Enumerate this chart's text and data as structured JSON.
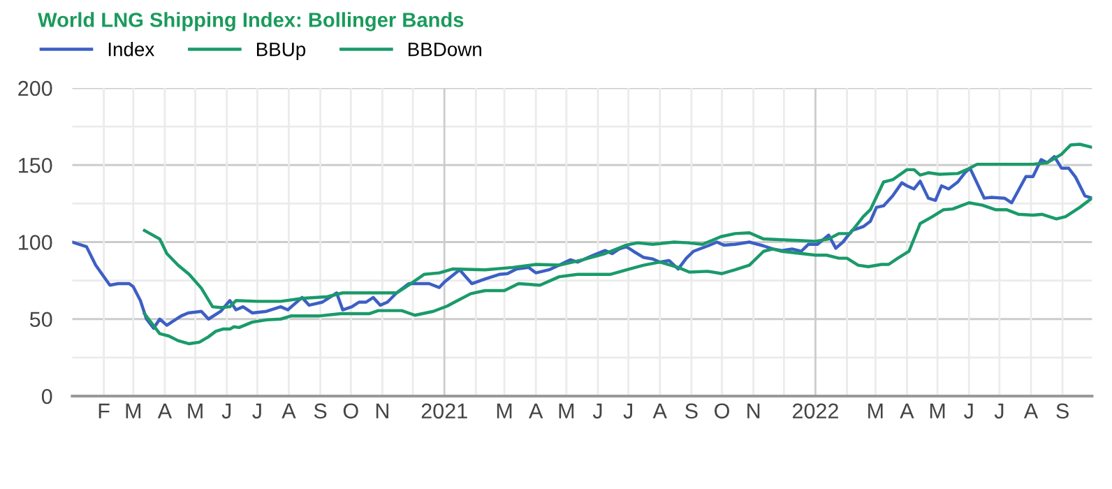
{
  "chart_data": {
    "type": "line",
    "title": "World LNG Shipping Index: Bollinger Bands",
    "legend": "top left",
    "grid": true,
    "line_style": "solid",
    "marker": "none",
    "xlim": [
      "2020-01-01",
      "2022-09-30"
    ],
    "ylim": [
      0,
      200
    ],
    "yticks": [
      0,
      {
        "value": 25,
        "label": null
      },
      50,
      {
        "value": 75,
        "label": null
      },
      100,
      {
        "value": 125,
        "label": null
      },
      150,
      {
        "value": 175,
        "label": null
      },
      200
    ],
    "xticks": [
      {
        "value": "2020-02-01",
        "label": "F"
      },
      {
        "value": "2020-03-01",
        "label": "M"
      },
      {
        "value": "2020-04-01",
        "label": "A"
      },
      {
        "value": "2020-05-01",
        "label": "M"
      },
      {
        "value": "2020-06-01",
        "label": "J"
      },
      {
        "value": "2020-07-01",
        "label": "J"
      },
      {
        "value": "2020-08-01",
        "label": "A"
      },
      {
        "value": "2020-09-01",
        "label": "S"
      },
      {
        "value": "2020-10-01",
        "label": "O"
      },
      {
        "value": "2020-11-01",
        "label": "N"
      },
      {
        "value": "2020-12-01",
        "label": null
      },
      {
        "value": "2021-01-01",
        "label": "2021"
      },
      {
        "value": "2021-02-01",
        "label": null
      },
      {
        "value": "2021-03-01",
        "label": "M"
      },
      {
        "value": "2021-04-01",
        "label": "A"
      },
      {
        "value": "2021-05-01",
        "label": "M"
      },
      {
        "value": "2021-06-01",
        "label": "J"
      },
      {
        "value": "2021-07-01",
        "label": "J"
      },
      {
        "value": "2021-08-01",
        "label": "A"
      },
      {
        "value": "2021-09-01",
        "label": "S"
      },
      {
        "value": "2021-10-01",
        "label": "O"
      },
      {
        "value": "2021-11-01",
        "label": "N"
      },
      {
        "value": "2021-12-01",
        "label": null
      },
      {
        "value": "2022-01-01",
        "label": "2022"
      },
      {
        "value": "2022-02-01",
        "label": null
      },
      {
        "value": "2022-03-01",
        "label": "M"
      },
      {
        "value": "2022-04-01",
        "label": "A"
      },
      {
        "value": "2022-05-01",
        "label": "M"
      },
      {
        "value": "2022-06-01",
        "label": "J"
      },
      {
        "value": "2022-07-01",
        "label": "J"
      },
      {
        "value": "2022-08-01",
        "label": "A"
      },
      {
        "value": "2022-09-01",
        "label": "S"
      }
    ],
    "series": [
      {
        "name": "Index",
        "color": "#3d5fc4",
        "x": [
          "2020-01-01",
          "2020-01-15",
          "2020-01-24",
          "2020-02-07",
          "2020-02-15",
          "2020-02-26",
          "2020-03-01",
          "2020-03-08",
          "2020-03-14",
          "2020-03-21",
          "2020-03-27",
          "2020-04-03",
          "2020-04-17",
          "2020-04-24",
          "2020-05-07",
          "2020-05-14",
          "2020-05-26",
          "2020-06-04",
          "2020-06-10",
          "2020-06-17",
          "2020-06-26",
          "2020-07-10",
          "2020-07-24",
          "2020-07-31",
          "2020-08-14",
          "2020-08-21",
          "2020-09-03",
          "2020-09-17",
          "2020-09-23",
          "2020-10-02",
          "2020-10-09",
          "2020-10-16",
          "2020-10-23",
          "2020-10-30",
          "2020-11-06",
          "2020-11-15",
          "2020-11-27",
          "2020-12-08",
          "2020-12-17",
          "2020-12-27",
          "2021-01-01",
          "2021-01-16",
          "2021-01-28",
          "2021-02-10",
          "2021-02-24",
          "2021-03-04",
          "2021-03-13",
          "2021-03-25",
          "2021-04-01",
          "2021-04-14",
          "2021-04-24",
          "2021-05-05",
          "2021-05-12",
          "2021-05-26",
          "2021-06-08",
          "2021-06-15",
          "2021-06-22",
          "2021-06-29",
          "2021-07-06",
          "2021-07-16",
          "2021-07-25",
          "2021-08-01",
          "2021-08-10",
          "2021-08-19",
          "2021-08-27",
          "2021-09-03",
          "2021-09-17",
          "2021-09-26",
          "2021-10-03",
          "2021-10-14",
          "2021-10-28",
          "2021-11-11",
          "2021-11-20",
          "2021-11-29",
          "2021-12-09",
          "2021-12-18",
          "2021-12-25",
          "2022-01-03",
          "2022-01-14",
          "2022-01-21",
          "2022-01-28",
          "2022-02-06",
          "2022-02-17",
          "2022-02-24",
          "2022-03-02",
          "2022-03-09",
          "2022-03-18",
          "2022-03-27",
          "2022-04-01",
          "2022-04-08",
          "2022-04-14",
          "2022-04-22",
          "2022-04-29",
          "2022-05-05",
          "2022-05-12",
          "2022-05-21",
          "2022-05-28",
          "2022-06-02",
          "2022-06-16",
          "2022-06-23",
          "2022-07-06",
          "2022-07-13",
          "2022-07-27",
          "2022-08-03",
          "2022-08-11",
          "2022-08-17",
          "2022-08-24",
          "2022-08-31",
          "2022-09-07",
          "2022-09-14",
          "2022-09-23",
          "2022-09-30"
        ],
        "values": [
          100,
          97,
          85,
          72,
          73,
          73,
          71,
          62,
          50,
          44,
          50,
          46,
          52,
          54,
          55,
          50,
          55,
          62,
          56,
          58,
          54,
          55,
          58,
          56,
          64,
          59,
          61,
          67,
          56,
          58,
          61,
          61,
          64,
          59,
          61,
          67,
          73,
          73,
          73,
          70.5,
          74,
          82,
          73,
          76,
          79,
          79.5,
          82.5,
          83.5,
          80,
          82,
          85,
          88.5,
          87,
          91,
          94.5,
          92.5,
          95.5,
          97,
          94,
          90,
          89,
          87,
          88,
          82.5,
          89.5,
          94,
          97.5,
          100,
          98,
          98.5,
          100,
          97.5,
          95.5,
          94.5,
          95.5,
          94,
          98.5,
          98.5,
          104.5,
          96,
          100,
          107.5,
          110,
          113.5,
          122.5,
          123.5,
          130,
          138.5,
          136.5,
          134.5,
          139.5,
          128.5,
          127,
          136.5,
          134.5,
          139,
          145,
          148,
          128.5,
          129,
          128.5,
          125.5,
          142.5,
          142.5,
          153.5,
          151.5,
          155.5,
          148,
          148,
          142,
          130,
          128.5
        ]
      },
      {
        "name": "BBUp",
        "color": "#1a9a6a",
        "x": [
          "2020-03-12",
          "2020-03-27",
          "2020-04-03",
          "2020-04-14",
          "2020-04-25",
          "2020-05-07",
          "2020-05-18",
          "2020-05-26",
          "2020-06-04",
          "2020-06-10",
          "2020-07-01",
          "2020-07-24",
          "2020-08-15",
          "2020-09-08",
          "2020-09-23",
          "2020-10-23",
          "2020-11-15",
          "2020-11-29",
          "2020-12-12",
          "2020-12-27",
          "2021-01-09",
          "2021-02-10",
          "2021-03-09",
          "2021-04-01",
          "2021-04-24",
          "2021-05-17",
          "2021-06-08",
          "2021-06-29",
          "2021-07-10",
          "2021-07-25",
          "2021-08-15",
          "2021-08-29",
          "2021-09-12",
          "2021-09-30",
          "2021-10-14",
          "2021-10-28",
          "2021-11-11",
          "2021-11-29",
          "2021-12-15",
          "2022-01-01",
          "2022-01-14",
          "2022-01-24",
          "2022-02-04",
          "2022-02-17",
          "2022-02-24",
          "2022-03-09",
          "2022-03-18",
          "2022-04-01",
          "2022-04-08",
          "2022-04-14",
          "2022-04-22",
          "2022-05-03",
          "2022-05-21",
          "2022-06-02",
          "2022-06-09",
          "2022-07-02",
          "2022-08-03",
          "2022-08-17",
          "2022-08-31",
          "2022-09-09",
          "2022-09-18",
          "2022-09-30"
        ],
        "values": [
          107.5,
          102,
          92.5,
          85,
          79,
          70,
          58,
          57.5,
          58,
          62,
          61.5,
          61.5,
          63.5,
          64.5,
          67,
          67,
          67,
          73,
          79,
          80,
          82.5,
          82,
          83.5,
          85.5,
          85,
          88.5,
          92.5,
          98,
          99.5,
          98.5,
          100,
          99.5,
          98.5,
          103.5,
          105.5,
          106,
          102,
          101.5,
          101,
          100.5,
          102,
          105.5,
          105.5,
          116.5,
          121,
          139,
          140.5,
          147,
          147,
          143.5,
          145,
          144,
          144.5,
          148,
          150.5,
          150.5,
          150.5,
          151.5,
          157,
          163,
          163.5,
          161.5
        ]
      },
      {
        "name": "BBDown",
        "color": "#1a9a6a",
        "x": [
          "2020-03-12",
          "2020-03-27",
          "2020-04-05",
          "2020-04-14",
          "2020-04-25",
          "2020-05-05",
          "2020-05-14",
          "2020-05-21",
          "2020-05-28",
          "2020-06-04",
          "2020-06-08",
          "2020-06-13",
          "2020-06-26",
          "2020-07-10",
          "2020-07-24",
          "2020-08-03",
          "2020-08-30",
          "2020-09-21",
          "2020-10-19",
          "2020-10-28",
          "2020-11-20",
          "2020-12-03",
          "2020-12-21",
          "2021-01-04",
          "2021-01-11",
          "2021-01-27",
          "2021-02-10",
          "2021-03-01",
          "2021-03-15",
          "2021-04-05",
          "2021-04-24",
          "2021-05-12",
          "2021-05-31",
          "2021-06-13",
          "2021-07-02",
          "2021-07-16",
          "2021-08-01",
          "2021-08-19",
          "2021-08-30",
          "2021-09-17",
          "2021-10-01",
          "2021-10-14",
          "2021-10-28",
          "2021-11-11",
          "2021-11-20",
          "2021-11-29",
          "2022-01-01",
          "2022-01-12",
          "2022-01-24",
          "2022-02-01",
          "2022-02-12",
          "2022-02-22",
          "2022-03-07",
          "2022-03-14",
          "2022-03-23",
          "2022-04-03",
          "2022-04-14",
          "2022-04-26",
          "2022-05-07",
          "2022-05-16",
          "2022-06-01",
          "2022-06-14",
          "2022-06-27",
          "2022-07-08",
          "2022-07-20",
          "2022-08-03",
          "2022-08-12",
          "2022-08-26",
          "2022-09-04",
          "2022-09-18",
          "2022-09-30"
        ],
        "values": [
          53.5,
          40.5,
          39,
          36,
          34,
          35,
          38.5,
          42,
          43.5,
          43.5,
          45,
          44.5,
          48,
          49.5,
          50,
          52,
          52,
          53.5,
          53.5,
          55.5,
          55.5,
          52.5,
          55,
          58.5,
          61,
          66.5,
          68.5,
          68.5,
          73,
          72,
          77.5,
          79,
          79,
          79,
          82.5,
          85,
          87,
          83.5,
          80.5,
          81,
          79.5,
          82,
          85,
          94,
          95.5,
          94,
          91.5,
          91.5,
          89.5,
          89.5,
          85,
          84,
          85.5,
          85.5,
          89.5,
          94,
          112,
          116.5,
          121,
          121.5,
          125.5,
          124,
          121,
          121,
          118,
          117.5,
          118,
          115,
          116.5,
          122.5,
          128.5
        ]
      }
    ]
  }
}
